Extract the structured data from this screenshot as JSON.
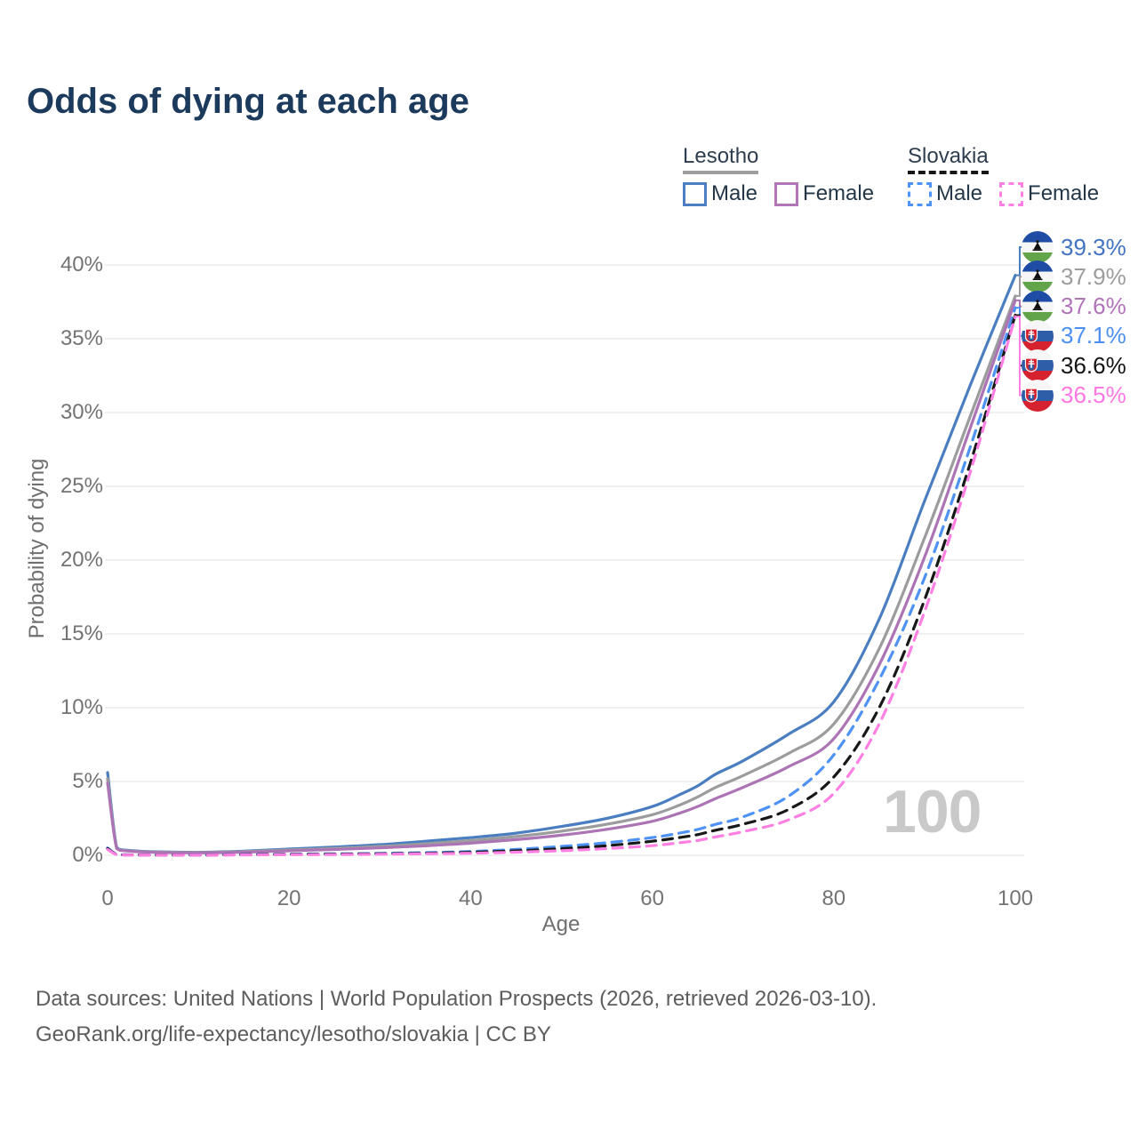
{
  "title": "Odds of dying at each age",
  "watermark": "100",
  "legend": {
    "groups": [
      {
        "id": "lesotho",
        "title": "Lesotho",
        "underline_color": "#9e9e9e",
        "underline_style": "solid",
        "items": [
          {
            "label": "Male",
            "color": "#4a7ec0",
            "dashed": false
          },
          {
            "label": "Female",
            "color": "#b275b8",
            "dashed": false
          }
        ]
      },
      {
        "id": "slovakia",
        "title": "Slovakia",
        "underline_color": "#161616",
        "underline_style": "dashed",
        "items": [
          {
            "label": "Male",
            "color": "#4e92f5",
            "dashed": true
          },
          {
            "label": "Female",
            "color": "#ff7fe3",
            "dashed": true
          }
        ]
      }
    ]
  },
  "chart_data": {
    "type": "line",
    "title": "Odds of dying at each age",
    "xlabel": "Age",
    "ylabel": "Probability of dying",
    "xlim": [
      0,
      100
    ],
    "ylim": [
      0,
      40
    ],
    "x_ticks": [
      0,
      20,
      40,
      60,
      80,
      100
    ],
    "y_ticks": [
      {
        "value": 0,
        "label": "0%"
      },
      {
        "value": 5,
        "label": "5%"
      },
      {
        "value": 10,
        "label": "10%"
      },
      {
        "value": 15,
        "label": "15%"
      },
      {
        "value": 20,
        "label": "20%"
      },
      {
        "value": 25,
        "label": "25%"
      },
      {
        "value": 30,
        "label": "30%"
      },
      {
        "value": 35,
        "label": "35%"
      },
      {
        "value": 40,
        "label": "40%"
      }
    ],
    "grid": true,
    "x": [
      0,
      1,
      2,
      5,
      10,
      15,
      20,
      25,
      30,
      35,
      40,
      45,
      50,
      55,
      60,
      63,
      65,
      67,
      70,
      75,
      80,
      85,
      90,
      95,
      100
    ],
    "series": [
      {
        "name": "Lesotho Male",
        "flag": "lesotho",
        "color": "#4a7ec0",
        "dashed": false,
        "values": [
          5.6,
          0.55,
          0.35,
          0.24,
          0.2,
          0.28,
          0.42,
          0.56,
          0.72,
          0.95,
          1.2,
          1.5,
          1.95,
          2.5,
          3.3,
          4.1,
          4.7,
          5.5,
          6.4,
          8.2,
          10.4,
          16.0,
          24.0,
          31.8,
          39.3
        ],
        "end_label": {
          "text": "39.3%",
          "color": "#4273c2"
        }
      },
      {
        "name": "Lesotho",
        "flag": "lesotho",
        "color": "#9c9c9e",
        "dashed": false,
        "values": [
          5.2,
          0.5,
          0.32,
          0.22,
          0.18,
          0.25,
          0.36,
          0.47,
          0.6,
          0.78,
          1.0,
          1.27,
          1.63,
          2.1,
          2.75,
          3.4,
          3.95,
          4.6,
          5.4,
          6.9,
          8.9,
          14.0,
          21.5,
          29.7,
          37.9
        ],
        "end_label": {
          "text": "37.9%",
          "color": "#9c9c9c"
        }
      },
      {
        "name": "Lesotho Female",
        "flag": "lesotho",
        "color": "#ad74b5",
        "dashed": false,
        "values": [
          4.9,
          0.46,
          0.3,
          0.2,
          0.16,
          0.21,
          0.3,
          0.39,
          0.5,
          0.64,
          0.82,
          1.06,
          1.36,
          1.76,
          2.3,
          2.85,
          3.3,
          3.85,
          4.6,
          6.0,
          7.9,
          12.9,
          20.2,
          28.9,
          37.6
        ],
        "end_label": {
          "text": "37.6%",
          "color": "#b273bb"
        }
      },
      {
        "name": "Slovakia Male",
        "flag": "slovakia",
        "color": "#4e92f5",
        "dashed": true,
        "values": [
          0.5,
          0.06,
          0.03,
          0.02,
          0.02,
          0.05,
          0.08,
          0.1,
          0.13,
          0.18,
          0.26,
          0.4,
          0.6,
          0.85,
          1.2,
          1.5,
          1.75,
          2.1,
          2.6,
          4.0,
          6.8,
          11.9,
          18.8,
          27.6,
          37.1
        ],
        "end_label": {
          "text": "37.1%",
          "color": "#4b8ff2"
        }
      },
      {
        "name": "Slovakia",
        "flag": "slovakia",
        "color": "#181818",
        "dashed": true,
        "values": [
          0.45,
          0.05,
          0.03,
          0.02,
          0.015,
          0.04,
          0.06,
          0.08,
          0.1,
          0.14,
          0.2,
          0.3,
          0.45,
          0.65,
          0.95,
          1.2,
          1.4,
          1.7,
          2.1,
          3.1,
          5.3,
          10.0,
          17.3,
          26.5,
          36.6
        ],
        "end_label": {
          "text": "36.6%",
          "color": "#141414"
        }
      },
      {
        "name": "Slovakia Female",
        "flag": "slovakia",
        "color": "#ff7fe3",
        "dashed": true,
        "values": [
          0.4,
          0.04,
          0.02,
          0.015,
          0.012,
          0.025,
          0.04,
          0.05,
          0.07,
          0.1,
          0.14,
          0.21,
          0.31,
          0.45,
          0.65,
          0.85,
          1.0,
          1.25,
          1.6,
          2.4,
          4.2,
          8.9,
          16.5,
          25.9,
          36.5
        ],
        "end_label": {
          "text": "36.5%",
          "color": "#ff77e2"
        }
      }
    ]
  },
  "footer": {
    "line1": "Data sources: United Nations | World Population Prospects (2026, retrieved 2026-03-10).",
    "line2": "GeoRank.org/life-expectancy/lesotho/slovakia | CC BY"
  }
}
